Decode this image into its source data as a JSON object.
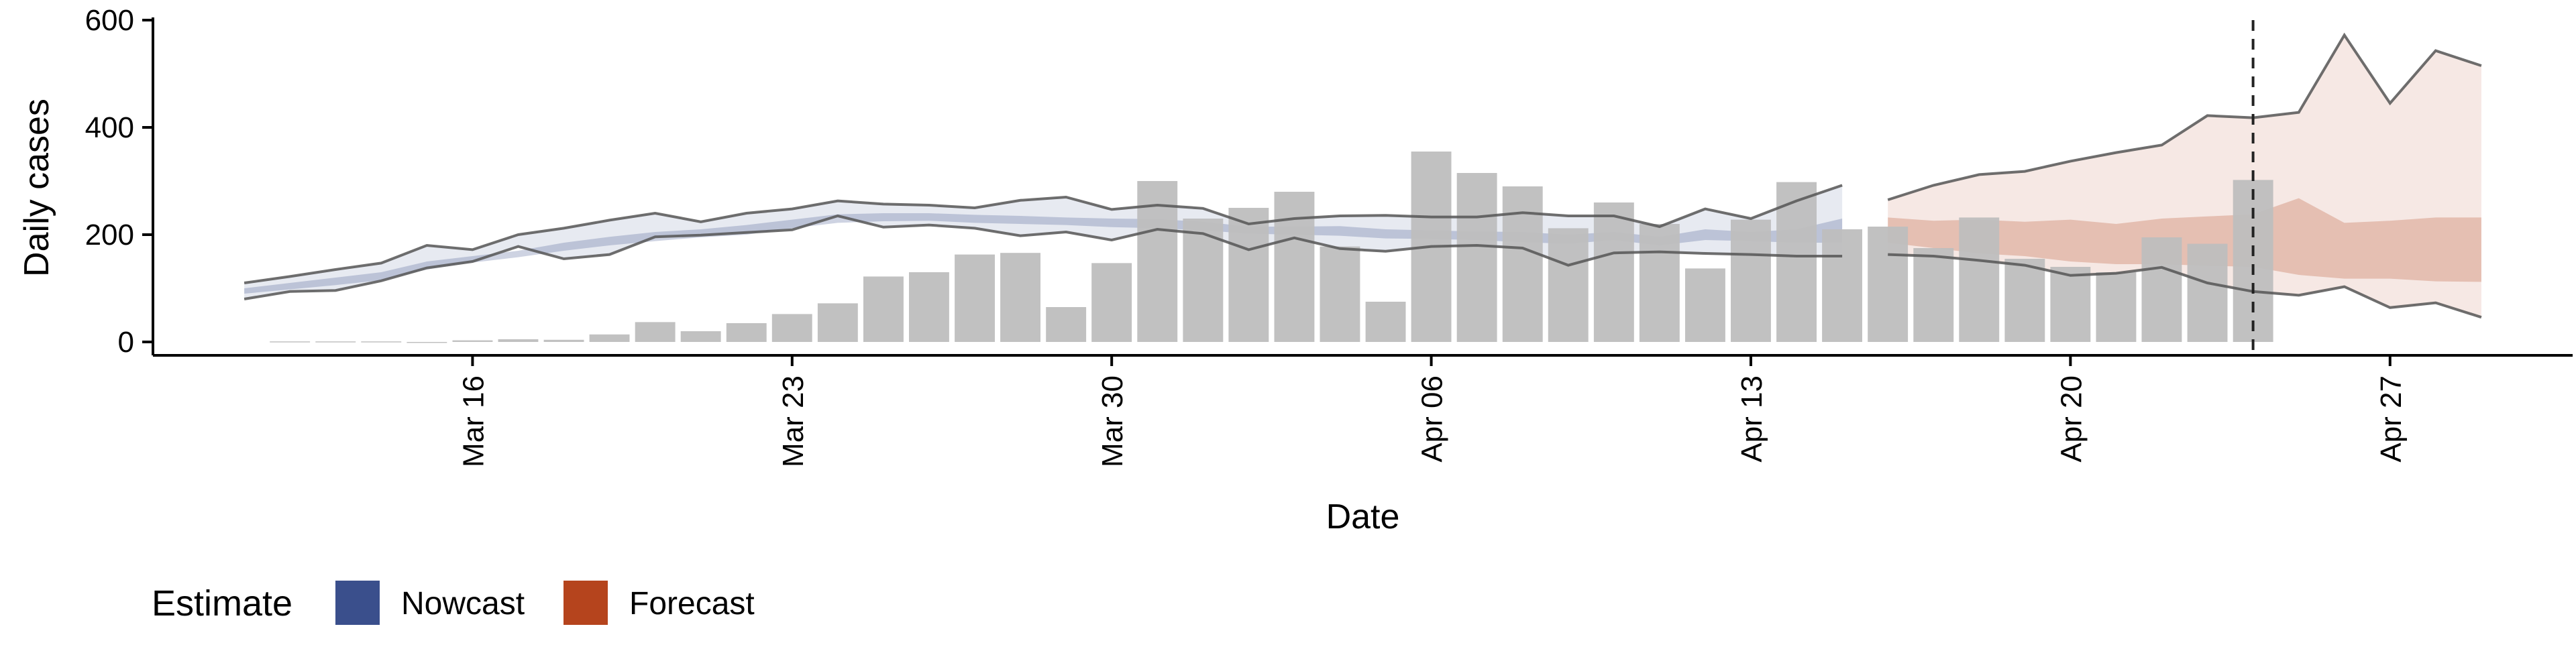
{
  "chart_data": {
    "type": "bar",
    "xlabel": "Date",
    "ylabel": "Daily cases",
    "x_range": [
      "2020-03-09",
      "2020-05-01"
    ],
    "ylim": [
      -25,
      600
    ],
    "yticks": [
      0,
      200,
      400,
      600
    ],
    "xticks": [
      {
        "date": "2020-03-16",
        "label": "Mar 16"
      },
      {
        "date": "2020-03-23",
        "label": "Mar 23"
      },
      {
        "date": "2020-03-30",
        "label": "Mar 30"
      },
      {
        "date": "2020-04-06",
        "label": "Apr 06"
      },
      {
        "date": "2020-04-13",
        "label": "Apr 13"
      },
      {
        "date": "2020-04-20",
        "label": "Apr 20"
      },
      {
        "date": "2020-04-27",
        "label": "Apr 27"
      }
    ],
    "grid": false,
    "bar_color": "#bebebe",
    "reported_cases": {
      "dates": [
        "2020-03-12",
        "2020-03-13",
        "2020-03-14",
        "2020-03-15",
        "2020-03-16",
        "2020-03-17",
        "2020-03-18",
        "2020-03-19",
        "2020-03-20",
        "2020-03-21",
        "2020-03-22",
        "2020-03-23",
        "2020-03-24",
        "2020-03-25",
        "2020-03-26",
        "2020-03-27",
        "2020-03-28",
        "2020-03-29",
        "2020-03-30",
        "2020-03-31",
        "2020-04-01",
        "2020-04-02",
        "2020-04-03",
        "2020-04-04",
        "2020-04-05",
        "2020-04-06",
        "2020-04-07",
        "2020-04-08",
        "2020-04-09",
        "2020-04-10",
        "2020-04-11",
        "2020-04-12",
        "2020-04-13",
        "2020-04-14",
        "2020-04-15",
        "2020-04-16",
        "2020-04-17",
        "2020-04-18",
        "2020-04-19",
        "2020-04-20",
        "2020-04-21",
        "2020-04-22",
        "2020-04-23",
        "2020-04-24"
      ],
      "values": [
        1,
        1,
        1,
        0,
        3,
        5,
        4,
        14,
        37,
        20,
        35,
        52,
        72,
        122,
        130,
        163,
        166,
        65,
        147,
        300,
        230,
        250,
        280,
        178,
        75,
        355,
        315,
        290,
        212,
        260,
        220,
        137,
        228,
        298,
        210,
        215,
        175,
        232,
        155,
        140,
        130,
        195,
        183,
        302
      ]
    },
    "series": [
      {
        "name": "Nowcast",
        "color": "#3a4f8c",
        "dates": [
          "2020-03-11",
          "2020-03-12",
          "2020-03-13",
          "2020-03-14",
          "2020-03-15",
          "2020-03-16",
          "2020-03-17",
          "2020-03-18",
          "2020-03-19",
          "2020-03-20",
          "2020-03-21",
          "2020-03-22",
          "2020-03-23",
          "2020-03-24",
          "2020-03-25",
          "2020-03-26",
          "2020-03-27",
          "2020-03-28",
          "2020-03-29",
          "2020-03-30",
          "2020-03-31",
          "2020-04-01",
          "2020-04-02",
          "2020-04-03",
          "2020-04-04",
          "2020-04-05",
          "2020-04-06",
          "2020-04-07",
          "2020-04-08",
          "2020-04-09",
          "2020-04-10",
          "2020-04-11",
          "2020-04-12",
          "2020-04-13",
          "2020-04-14",
          "2020-04-15"
        ],
        "upper_90": [
          110,
          122,
          135,
          147,
          180,
          172,
          200,
          212,
          227,
          240,
          224,
          240,
          248,
          263,
          257,
          255,
          250,
          264,
          270,
          247,
          255,
          249,
          220,
          230,
          235,
          236,
          233,
          233,
          241,
          235,
          235,
          215,
          248,
          230,
          263,
          292
        ],
        "upper_50": [
          100,
          110,
          120,
          130,
          150,
          160,
          170,
          185,
          196,
          205,
          210,
          218,
          228,
          238,
          240,
          240,
          237,
          235,
          232,
          230,
          229,
          224,
          215,
          215,
          216,
          210,
          208,
          206,
          205,
          200,
          205,
          196,
          210,
          205,
          210,
          230
        ],
        "lower_50": [
          90,
          98,
          106,
          115,
          135,
          148,
          158,
          170,
          180,
          188,
          195,
          200,
          212,
          222,
          225,
          226,
          222,
          220,
          218,
          214,
          212,
          208,
          202,
          200,
          198,
          193,
          192,
          190,
          186,
          183,
          190,
          180,
          190,
          188,
          185,
          185
        ],
        "lower_90": [
          80,
          94,
          96,
          114,
          138,
          150,
          178,
          155,
          163,
          196,
          199,
          204,
          209,
          235,
          214,
          218,
          212,
          198,
          205,
          190,
          210,
          202,
          172,
          194,
          174,
          169,
          178,
          180,
          175,
          143,
          166,
          168,
          165,
          163,
          160,
          160
        ]
      },
      {
        "name": "Forecast",
        "color": "#b5441d",
        "dates": [
          "2020-04-16",
          "2020-04-17",
          "2020-04-18",
          "2020-04-19",
          "2020-04-20",
          "2020-04-21",
          "2020-04-22",
          "2020-04-23",
          "2020-04-24",
          "2020-04-25",
          "2020-04-26",
          "2020-04-27",
          "2020-04-28",
          "2020-04-29"
        ],
        "upper_90": [
          265,
          292,
          312,
          318,
          337,
          353,
          367,
          422,
          418,
          428,
          572,
          445,
          543,
          515
        ],
        "upper_50": [
          232,
          226,
          228,
          224,
          228,
          220,
          230,
          234,
          238,
          268,
          222,
          226,
          232,
          232
        ],
        "lower_50": [
          185,
          175,
          165,
          160,
          150,
          145,
          145,
          142,
          140,
          125,
          118,
          118,
          113,
          112
        ],
        "lower_90": [
          163,
          160,
          152,
          143,
          124,
          128,
          139,
          110,
          94,
          87,
          103,
          64,
          73,
          46
        ]
      }
    ],
    "vline_date": "2020-04-24",
    "legend": {
      "title": "Estimate",
      "position": "bottom-left",
      "items": [
        {
          "label": "Nowcast",
          "color": "#3a4f8c"
        },
        {
          "label": "Forecast",
          "color": "#b5441d"
        }
      ]
    }
  }
}
